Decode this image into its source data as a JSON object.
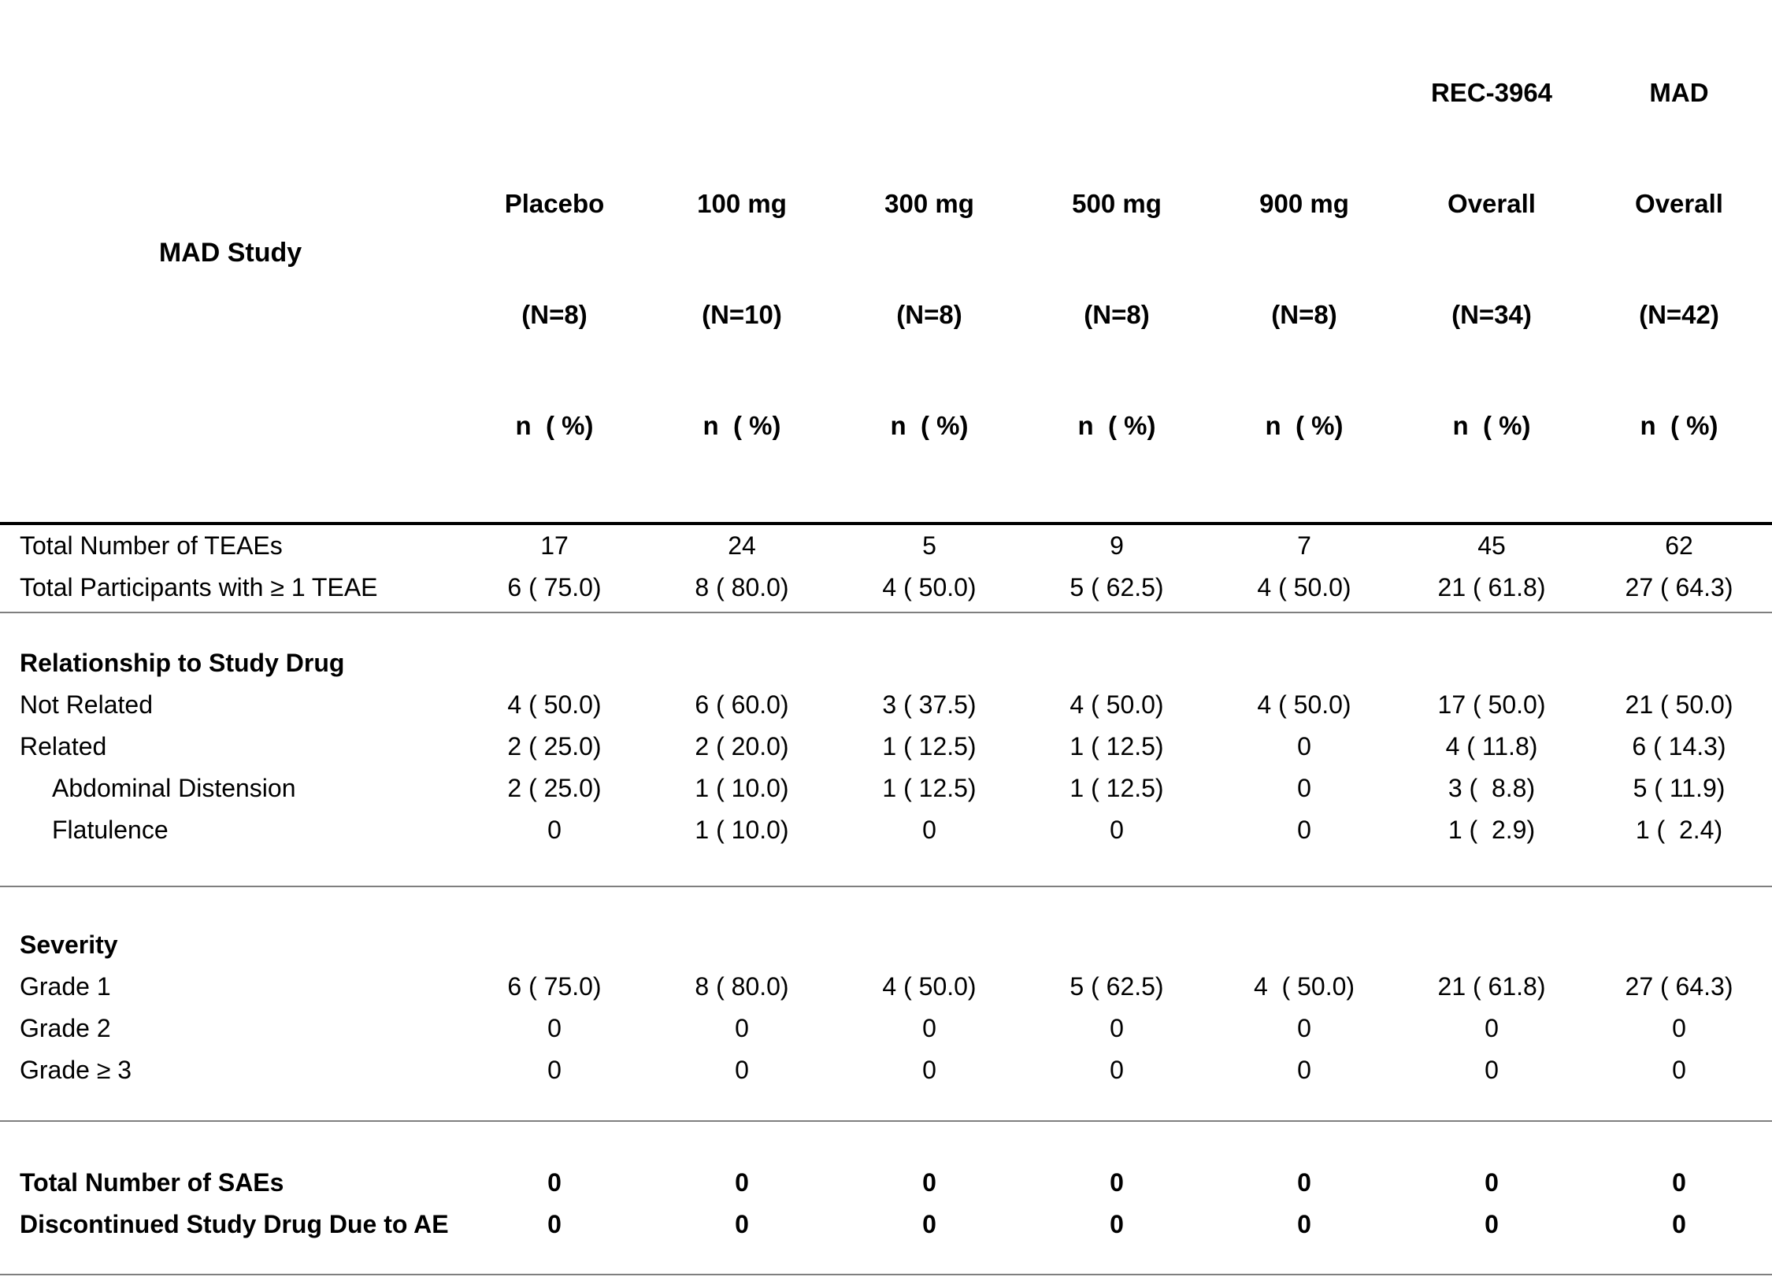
{
  "page": {
    "background_color": "#ffffff",
    "text_color": "#000000",
    "header_rule_color": "#000000",
    "divider_color": "#7f7f7f"
  },
  "table": {
    "corner_label": "MAD Study",
    "columns": [
      {
        "lines": [
          "Placebo",
          "(N=8)",
          "n  ( %)"
        ]
      },
      {
        "lines": [
          "100 mg",
          "(N=10)",
          "n  ( %)"
        ]
      },
      {
        "lines": [
          "300 mg",
          "(N=8)",
          "n  ( %)"
        ]
      },
      {
        "lines": [
          "500 mg",
          "(N=8)",
          "n  ( %)"
        ]
      },
      {
        "lines": [
          "900 mg",
          "(N=8)",
          "n  ( %)"
        ]
      },
      {
        "lines": [
          "REC-3964",
          "Overall",
          "(N=34)",
          "n  ( %)"
        ]
      },
      {
        "lines": [
          "MAD",
          "Overall",
          "(N=42)",
          "n  ( %)"
        ]
      }
    ],
    "sections": [
      {
        "header": null,
        "rows": [
          {
            "label": "Total Number of TEAEs",
            "indent": false,
            "bold": false,
            "values": [
              "17",
              "24",
              "5",
              "9",
              "7",
              "45",
              "62"
            ]
          },
          {
            "label": "Total Participants with ≥ 1 TEAE",
            "indent": false,
            "bold": false,
            "values": [
              "6 ( 75.0)",
              "8 ( 80.0)",
              "4 ( 50.0)",
              "5 ( 62.5)",
              "4 ( 50.0)",
              "21 ( 61.8)",
              "27 ( 64.3)"
            ]
          }
        ]
      },
      {
        "header": "Relationship to Study Drug",
        "rows": [
          {
            "label": "Not Related",
            "indent": false,
            "bold": false,
            "values": [
              "4 ( 50.0)",
              "6 ( 60.0)",
              "3 ( 37.5)",
              "4 ( 50.0)",
              "4 ( 50.0)",
              "17 ( 50.0)",
              "21 ( 50.0)"
            ]
          },
          {
            "label": "Related",
            "indent": false,
            "bold": false,
            "values": [
              "2 ( 25.0)",
              "2 ( 20.0)",
              "1 ( 12.5)",
              "1 ( 12.5)",
              "0",
              "4 ( 11.8)",
              "6 ( 14.3)"
            ]
          },
          {
            "label": "Abdominal Distension",
            "indent": true,
            "bold": false,
            "values": [
              "2 ( 25.0)",
              "1 ( 10.0)",
              "1 ( 12.5)",
              "1 ( 12.5)",
              "0",
              "3 (  8.8)",
              "5 ( 11.9)"
            ]
          },
          {
            "label": "Flatulence",
            "indent": true,
            "bold": false,
            "values": [
              "0",
              "1 ( 10.0)",
              "0",
              "0",
              "0",
              "1 (  2.9)",
              "1 (  2.4)"
            ]
          }
        ]
      },
      {
        "header": "Severity",
        "rows": [
          {
            "label": "Grade 1",
            "indent": false,
            "bold": false,
            "values": [
              "6 ( 75.0)",
              "8 ( 80.0)",
              "4 ( 50.0)",
              "5 ( 62.5)",
              "4  ( 50.0)",
              "21 ( 61.8)",
              "27 ( 64.3)"
            ]
          },
          {
            "label": "Grade 2",
            "indent": false,
            "bold": false,
            "values": [
              "0",
              "0",
              "0",
              "0",
              "0",
              "0",
              "0"
            ]
          },
          {
            "label": "Grade ≥ 3",
            "indent": false,
            "bold": false,
            "values": [
              "0",
              "0",
              "0",
              "0",
              "0",
              "0",
              "0"
            ]
          }
        ]
      },
      {
        "header": null,
        "rows": [
          {
            "label": "Total Number of SAEs",
            "indent": false,
            "bold": true,
            "values": [
              "0",
              "0",
              "0",
              "0",
              "0",
              "0",
              "0"
            ]
          },
          {
            "label": "Discontinued Study Drug Due to AE",
            "indent": false,
            "bold": true,
            "values": [
              "0",
              "0",
              "0",
              "0",
              "0",
              "0",
              "0"
            ]
          }
        ]
      }
    ]
  },
  "chart_data": {
    "type": "table",
    "title": "MAD Study",
    "columns": [
      "MAD Study",
      "Placebo (N=8) n ( %)",
      "100 mg (N=10) n ( %)",
      "300 mg (N=8) n ( %)",
      "500 mg (N=8) n ( %)",
      "900 mg (N=8) n ( %)",
      "REC-3964 Overall (N=34) n ( %)",
      "MAD Overall (N=42) n ( %)"
    ],
    "rows": [
      [
        "Total Number of TEAEs",
        "17",
        "24",
        "5",
        "9",
        "7",
        "45",
        "62"
      ],
      [
        "Total Participants with ≥ 1 TEAE",
        "6 ( 75.0)",
        "8 ( 80.0)",
        "4 ( 50.0)",
        "5 ( 62.5)",
        "4 ( 50.0)",
        "21 ( 61.8)",
        "27 ( 64.3)"
      ],
      [
        "Relationship to Study Drug",
        "",
        "",
        "",
        "",
        "",
        "",
        ""
      ],
      [
        "Not Related",
        "4 ( 50.0)",
        "6 ( 60.0)",
        "3 ( 37.5)",
        "4 ( 50.0)",
        "4 ( 50.0)",
        "17 ( 50.0)",
        "21 ( 50.0)"
      ],
      [
        "Related",
        "2 ( 25.0)",
        "2 ( 20.0)",
        "1 ( 12.5)",
        "1 ( 12.5)",
        "0",
        "4 ( 11.8)",
        "6 ( 14.3)"
      ],
      [
        "Abdominal Distension",
        "2 ( 25.0)",
        "1 ( 10.0)",
        "1 ( 12.5)",
        "1 ( 12.5)",
        "0",
        "3 ( 8.8)",
        "5 ( 11.9)"
      ],
      [
        "Flatulence",
        "0",
        "1 ( 10.0)",
        "0",
        "0",
        "0",
        "1 ( 2.9)",
        "1 ( 2.4)"
      ],
      [
        "Severity",
        "",
        "",
        "",
        "",
        "",
        "",
        ""
      ],
      [
        "Grade 1",
        "6 ( 75.0)",
        "8 ( 80.0)",
        "4 ( 50.0)",
        "5 ( 62.5)",
        "4 ( 50.0)",
        "21 ( 61.8)",
        "27 ( 64.3)"
      ],
      [
        "Grade 2",
        "0",
        "0",
        "0",
        "0",
        "0",
        "0",
        "0"
      ],
      [
        "Grade ≥ 3",
        "0",
        "0",
        "0",
        "0",
        "0",
        "0",
        "0"
      ],
      [
        "Total Number of SAEs",
        "0",
        "0",
        "0",
        "0",
        "0",
        "0",
        "0"
      ],
      [
        "Discontinued Study Drug Due to AE",
        "0",
        "0",
        "0",
        "0",
        "0",
        "0",
        "0"
      ]
    ]
  }
}
